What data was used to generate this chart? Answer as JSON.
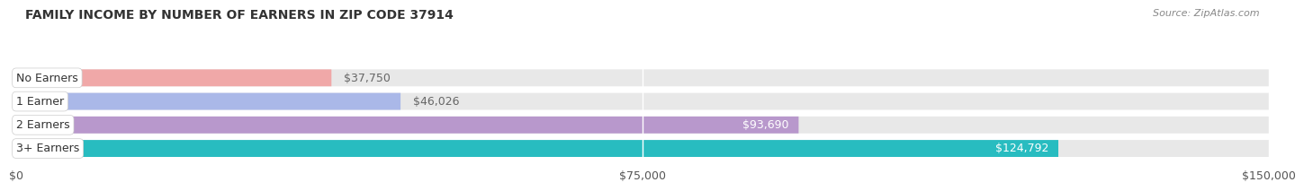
{
  "title": "FAMILY INCOME BY NUMBER OF EARNERS IN ZIP CODE 37914",
  "source": "Source: ZipAtlas.com",
  "categories": [
    "No Earners",
    "1 Earner",
    "2 Earners",
    "3+ Earners"
  ],
  "values": [
    37750,
    46026,
    93690,
    124792
  ],
  "labels": [
    "$37,750",
    "$46,026",
    "$93,690",
    "$124,792"
  ],
  "bar_colors": [
    "#f0a8a8",
    "#aab8e8",
    "#b898cc",
    "#28bcc0"
  ],
  "label_colors": [
    "#666666",
    "#666666",
    "#ffffff",
    "#ffffff"
  ],
  "xlim": [
    0,
    150000
  ],
  "xtick_labels": [
    "$0",
    "$75,000",
    "$150,000"
  ],
  "bg_color": "#ffffff",
  "bar_bg_color": "#e8e8e8",
  "title_fontsize": 10,
  "source_fontsize": 8,
  "label_fontsize": 9,
  "category_fontsize": 9,
  "bar_height": 0.72,
  "figwidth": 14.06,
  "figheight": 2.33
}
